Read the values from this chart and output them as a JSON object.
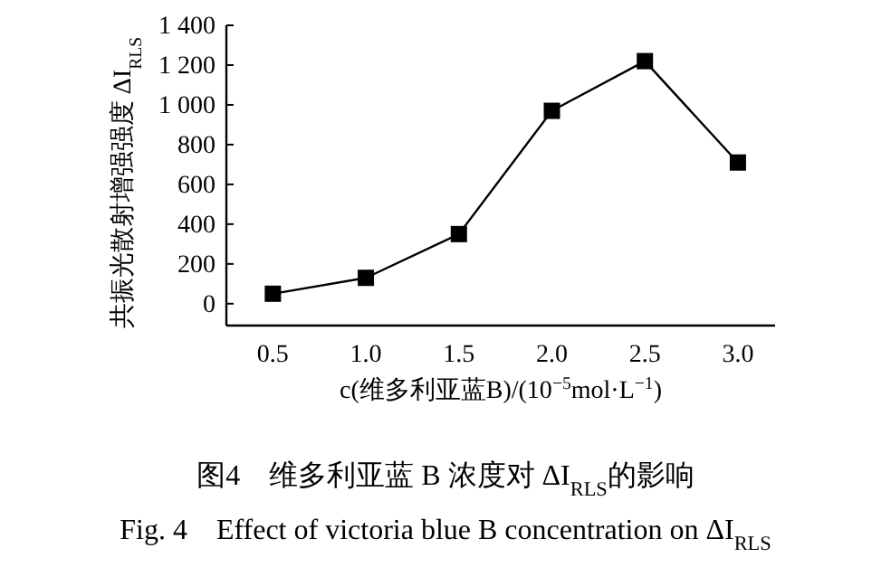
{
  "chart_data": {
    "type": "line",
    "title": "图4　维多利亚蓝 B 浓度对 ΔI$_{RLS}$的影响",
    "subtitle": "Fig. 4　Effect of victoria blue B concentration on ΔI$_{RLS}$",
    "xlabel": "c(维多利亚蓝B)/(10$^{−5}$mol·L$^{−1}$)",
    "ylabel": "共振光散射增强强度 ΔI$_{RLS}$",
    "x": [
      0.5,
      1.0,
      1.5,
      2.0,
      2.5,
      3.0
    ],
    "series": [
      {
        "color": "#000000",
        "values": [
          50,
          130,
          350,
          970,
          1220,
          710
        ]
      }
    ],
    "xlim": [
      0.25,
      3.2
    ],
    "ylim": [
      -110,
      1400
    ],
    "xticks": [
      {
        "value": 0.5,
        "label": "0.5"
      },
      {
        "value": 1.0,
        "label": "1.0"
      },
      {
        "value": 1.5,
        "label": "1.5"
      },
      {
        "value": 2.0,
        "label": "2.0"
      },
      {
        "value": 2.5,
        "label": "2.5"
      },
      {
        "value": 3.0,
        "label": "3.0"
      }
    ],
    "yticks": [
      0,
      200,
      400,
      600,
      800,
      {
        "value": 1000,
        "label": "1 000"
      },
      {
        "value": 1200,
        "label": "1 200"
      },
      {
        "value": 1400,
        "label": "1 400"
      }
    ],
    "marker": "square",
    "line_style": "solid",
    "grid": false
  }
}
